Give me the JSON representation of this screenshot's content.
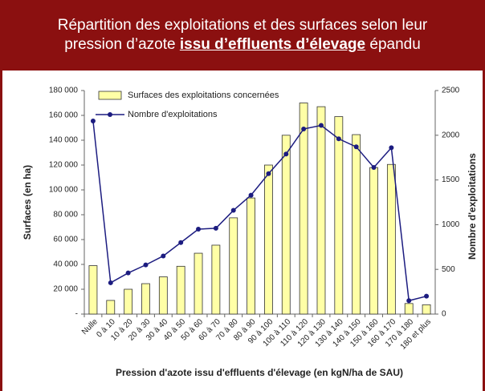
{
  "header": {
    "line1": "Répartition des exploitations et des surfaces selon leur",
    "line2_start": "pression d’azote ",
    "line2_emphasis": "issu d’effluents d’élevage",
    "line2_end": " épandu"
  },
  "chart_data": {
    "type": "bar",
    "xlabel": "Pression d'azote issu d'effluents d'élevage (en kgN/ha de SAU)",
    "ylabel": "Surfaces (en ha)",
    "y2label": "Nombre d'exploitations",
    "categories": [
      "Nulle",
      "0 à 10",
      "10 à 20",
      "20 à 30",
      "30 à 40",
      "40 à 50",
      "50 à 60",
      "60 à 70",
      "70 à 80",
      "80 à 90",
      "90 à 100",
      "100 à 110",
      "110 à 120",
      "120 à 130",
      "130 à 140",
      "140 à 150",
      "150 à 160",
      "160 à 170",
      "170 à 180",
      "180 et plus"
    ],
    "series": [
      {
        "name": "Surfaces des exploitations concernées",
        "type": "bar",
        "color": "#ffffa6",
        "axis": "y",
        "values": [
          39000,
          11000,
          20000,
          24500,
          30000,
          38500,
          49000,
          55500,
          77500,
          93500,
          120000,
          144000,
          170000,
          167000,
          159000,
          144500,
          118000,
          120500,
          8500,
          7500
        ]
      },
      {
        "name": "Nombre d'exploitations",
        "type": "line",
        "color": "#1c1c80",
        "axis": "y2",
        "values": [
          2160,
          350,
          460,
          550,
          650,
          800,
          950,
          960,
          1160,
          1330,
          1570,
          1790,
          2070,
          2110,
          1960,
          1870,
          1640,
          1860,
          150,
          200
        ]
      }
    ],
    "ylim": [
      0,
      180000
    ],
    "yticks": [
      {
        "value": 0,
        "label": "-"
      },
      {
        "value": 20000,
        "label": "20 000"
      },
      {
        "value": 40000,
        "label": "40 000"
      },
      {
        "value": 60000,
        "label": "60 000"
      },
      {
        "value": 80000,
        "label": "80 000"
      },
      {
        "value": 100000,
        "label": "100 000"
      },
      {
        "value": 120000,
        "label": "120 000"
      },
      {
        "value": 140000,
        "label": "140 000"
      },
      {
        "value": 160000,
        "label": "160 000"
      },
      {
        "value": 180000,
        "label": "180 000"
      }
    ],
    "y2lim": [
      0,
      2500
    ],
    "y2ticks": [
      0,
      500,
      1000,
      1500,
      2000,
      2500
    ],
    "legend": "upper left"
  }
}
